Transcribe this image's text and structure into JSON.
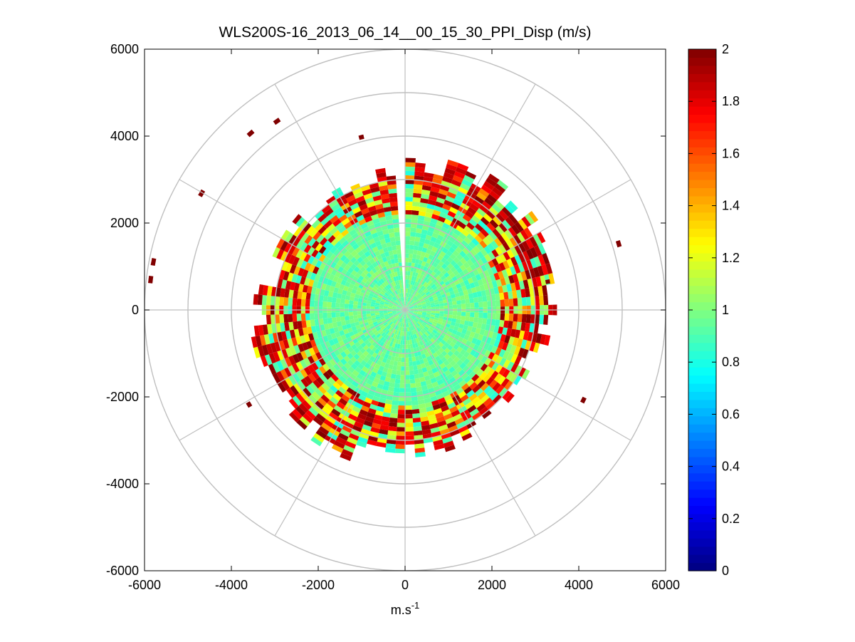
{
  "chart_data": {
    "type": "heatmap",
    "subtype": "polar-ppi-scan",
    "title": "WLS200S-16_2013_06_14__00_15_30_PPI_Disp (m/s)",
    "xlabel": "m.s",
    "xlabel_superscript": "-1",
    "ylabel": "",
    "xlim": [
      -6000,
      6000
    ],
    "ylim": [
      -6000,
      6000
    ],
    "xticks": [
      -6000,
      -4000,
      -2000,
      0,
      2000,
      4000,
      6000
    ],
    "yticks": [
      6000,
      4000,
      2000,
      0,
      -2000,
      -4000,
      -6000
    ],
    "xtick_labels": [
      "-6000",
      "-4000",
      "-2000",
      "0",
      "2000",
      "4000",
      "6000"
    ],
    "ytick_labels": [
      "6000",
      "4000",
      "2000",
      "0",
      "-2000",
      "-4000",
      "-6000"
    ],
    "polar_grid": {
      "ring_radii": [
        1000,
        2000,
        3000,
        4000,
        5000,
        6000
      ],
      "spoke_angles_deg": [
        0,
        30,
        60,
        90,
        120,
        150,
        180,
        210,
        240,
        270,
        300,
        330
      ]
    },
    "colorbar": {
      "colormap": "jet",
      "range": [
        0,
        2
      ],
      "ticks": [
        0,
        0.2,
        0.4,
        0.6,
        0.8,
        1,
        1.2,
        1.4,
        1.6,
        1.8,
        2
      ],
      "tick_labels": [
        "0",
        "0.2",
        "0.4",
        "0.6",
        "0.8",
        "1",
        "1.2",
        "1.4",
        "1.6",
        "1.8",
        "2"
      ]
    },
    "scan": {
      "typical_value_inner": 0.95,
      "inner_radius_m": 2200,
      "outer_radius_m": 3400,
      "missing_sector_deg": [
        355,
        2
      ],
      "azimuth_step_deg": 4,
      "range_gate_m": 100
    },
    "outlier_patches": [
      {
        "range_m": 4050,
        "azimuth_deg": 345,
        "value": 2
      },
      {
        "range_m": 5850,
        "azimuth_deg": 280,
        "value": 2
      },
      {
        "range_m": 5850,
        "azimuth_deg": 276,
        "value": 2
      },
      {
        "range_m": 5350,
        "azimuth_deg": 299,
        "value": 2
      },
      {
        "range_m": 5350,
        "azimuth_deg": 318,
        "value": 2
      },
      {
        "range_m": 5200,
        "azimuth_deg": 325,
        "value": 2
      },
      {
        "range_m": 5100,
        "azimuth_deg": 72,
        "value": 2
      },
      {
        "range_m": 4550,
        "azimuth_deg": 116,
        "value": 2
      },
      {
        "range_m": 4150,
        "azimuth_deg": 238,
        "value": 2
      },
      {
        "range_m": 3300,
        "azimuth_deg": 78,
        "value": 2
      }
    ]
  }
}
